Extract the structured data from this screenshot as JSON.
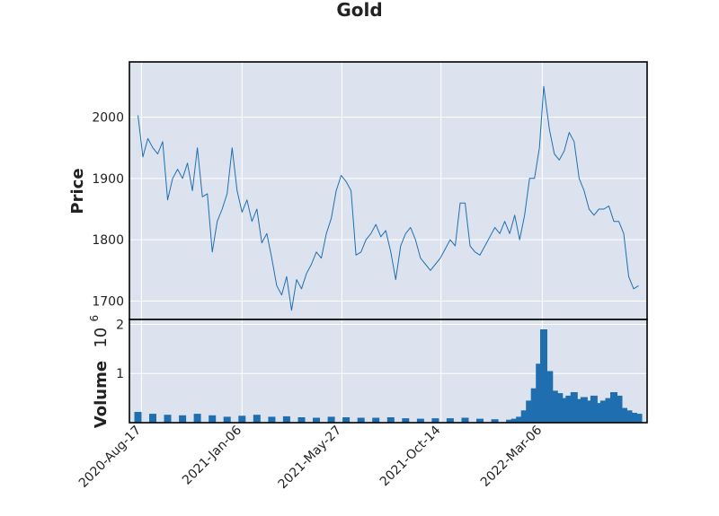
{
  "chart_data": {
    "type": "line",
    "title": "Gold",
    "price_panel": {
      "ylabel": "Price",
      "ylim": [
        1670,
        2090
      ],
      "yticks": [
        1700,
        1800,
        1900,
        2000
      ],
      "series": [
        {
          "x": [
            "2020-08-12",
            "2020-08-19",
            "2020-08-26",
            "2020-09-02",
            "2020-09-09",
            "2020-09-16",
            "2020-09-23",
            "2020-09-30",
            "2020-10-07",
            "2020-10-14",
            "2020-10-21",
            "2020-10-28",
            "2020-11-04",
            "2020-11-11",
            "2020-11-18",
            "2020-11-25",
            "2020-12-02",
            "2020-12-09",
            "2020-12-16",
            "2020-12-23",
            "2020-12-30",
            "2021-01-06",
            "2021-01-13",
            "2021-01-20",
            "2021-01-27",
            "2021-02-03",
            "2021-02-10",
            "2021-02-17",
            "2021-02-24",
            "2021-03-03",
            "2021-03-10",
            "2021-03-17",
            "2021-03-24",
            "2021-03-31",
            "2021-04-07",
            "2021-04-14",
            "2021-04-21",
            "2021-04-28",
            "2021-05-05",
            "2021-05-12",
            "2021-05-19",
            "2021-05-26",
            "2021-06-02",
            "2021-06-09",
            "2021-06-16",
            "2021-06-23",
            "2021-06-30",
            "2021-07-07",
            "2021-07-14",
            "2021-07-21",
            "2021-07-28",
            "2021-08-04",
            "2021-08-11",
            "2021-08-18",
            "2021-08-25",
            "2021-09-01",
            "2021-09-08",
            "2021-09-15",
            "2021-09-22",
            "2021-09-29",
            "2021-10-06",
            "2021-10-13",
            "2021-10-20",
            "2021-10-27",
            "2021-11-03",
            "2021-11-10",
            "2021-11-17",
            "2021-11-24",
            "2021-12-01",
            "2021-12-08",
            "2021-12-15",
            "2021-12-22",
            "2021-12-29",
            "2022-01-05",
            "2022-01-12",
            "2022-01-19",
            "2022-01-26",
            "2022-02-02",
            "2022-02-09",
            "2022-02-16",
            "2022-02-23",
            "2022-03-02",
            "2022-03-08",
            "2022-03-16",
            "2022-03-23",
            "2022-03-30",
            "2022-04-06",
            "2022-04-13",
            "2022-04-20",
            "2022-04-27",
            "2022-05-04",
            "2022-05-11",
            "2022-05-18",
            "2022-05-25",
            "2022-06-01",
            "2022-06-08",
            "2022-06-15",
            "2022-06-22",
            "2022-06-29",
            "2022-07-06",
            "2022-07-13",
            "2022-07-20"
          ],
          "values": [
            2003,
            1935,
            1965,
            1950,
            1940,
            1960,
            1865,
            1900,
            1915,
            1900,
            1925,
            1880,
            1950,
            1870,
            1875,
            1780,
            1830,
            1850,
            1875,
            1950,
            1880,
            1845,
            1865,
            1830,
            1850,
            1795,
            1810,
            1770,
            1725,
            1710,
            1740,
            1685,
            1735,
            1720,
            1745,
            1760,
            1780,
            1770,
            1810,
            1835,
            1880,
            1905,
            1895,
            1880,
            1775,
            1780,
            1800,
            1810,
            1825,
            1805,
            1815,
            1780,
            1735,
            1790,
            1810,
            1820,
            1800,
            1770,
            1760,
            1750,
            1760,
            1770,
            1785,
            1800,
            1790,
            1860,
            1860,
            1790,
            1780,
            1775,
            1790,
            1805,
            1820,
            1810,
            1830,
            1810,
            1840,
            1800,
            1840,
            1900,
            1900,
            1950,
            2050,
            1980,
            1940,
            1930,
            1945,
            1975,
            1960,
            1900,
            1880,
            1850,
            1840,
            1850,
            1850,
            1855,
            1830,
            1830,
            1810,
            1740,
            1720,
            1725
          ]
        }
      ]
    },
    "volume_panel": {
      "ylabel": "Volume",
      "scale_label": "10",
      "scale_exponent": "6",
      "ylim": [
        0,
        2.1
      ],
      "yticks": [
        1,
        2
      ],
      "ytick_labels": [
        "1",
        "2"
      ],
      "series": [
        {
          "x": [
            "2020-08-12",
            "2020-09-02",
            "2020-09-23",
            "2020-10-14",
            "2020-11-04",
            "2020-11-25",
            "2020-12-16",
            "2021-01-06",
            "2021-01-27",
            "2021-02-17",
            "2021-03-10",
            "2021-03-31",
            "2021-04-21",
            "2021-05-12",
            "2021-06-02",
            "2021-06-23",
            "2021-07-14",
            "2021-08-04",
            "2021-08-25",
            "2021-09-15",
            "2021-10-06",
            "2021-10-27",
            "2021-11-17",
            "2021-12-08",
            "2021-12-29",
            "2022-01-19",
            "2022-01-26",
            "2022-02-02",
            "2022-02-09",
            "2022-02-16",
            "2022-02-23",
            "2022-03-02",
            "2022-03-08",
            "2022-03-16",
            "2022-03-23",
            "2022-03-30",
            "2022-04-06",
            "2022-04-13",
            "2022-04-20",
            "2022-04-27",
            "2022-05-04",
            "2022-05-11",
            "2022-05-18",
            "2022-05-25",
            "2022-06-01",
            "2022-06-08",
            "2022-06-15",
            "2022-06-22",
            "2022-06-29",
            "2022-07-06",
            "2022-07-13",
            "2022-07-20"
          ],
          "values": [
            0.22,
            0.18,
            0.16,
            0.15,
            0.18,
            0.15,
            0.12,
            0.14,
            0.16,
            0.12,
            0.13,
            0.11,
            0.1,
            0.12,
            0.11,
            0.1,
            0.1,
            0.11,
            0.09,
            0.08,
            0.09,
            0.09,
            0.1,
            0.08,
            0.07,
            0.06,
            0.08,
            0.12,
            0.25,
            0.45,
            0.7,
            1.2,
            1.9,
            1.05,
            0.65,
            0.6,
            0.5,
            0.55,
            0.62,
            0.48,
            0.52,
            0.45,
            0.55,
            0.4,
            0.45,
            0.5,
            0.62,
            0.55,
            0.3,
            0.25,
            0.2,
            0.18
          ]
        }
      ]
    },
    "xaxis": {
      "range": [
        "2020-07-31",
        "2022-08-01"
      ],
      "ticks": [
        "2020-08-17",
        "2021-01-06",
        "2021-05-27",
        "2021-10-14",
        "2022-03-06"
      ],
      "tick_labels": [
        "2020-Aug-17",
        "2021-Jan-06",
        "2021-May-27",
        "2021-Oct-14",
        "2022-Mar-06"
      ]
    },
    "colors": {
      "line": "#1f6fb0",
      "bar": "#1f6fb0",
      "panel_bg": "#dde3ee",
      "grid": "#ffffff"
    },
    "grid": true,
    "legend": "none"
  }
}
